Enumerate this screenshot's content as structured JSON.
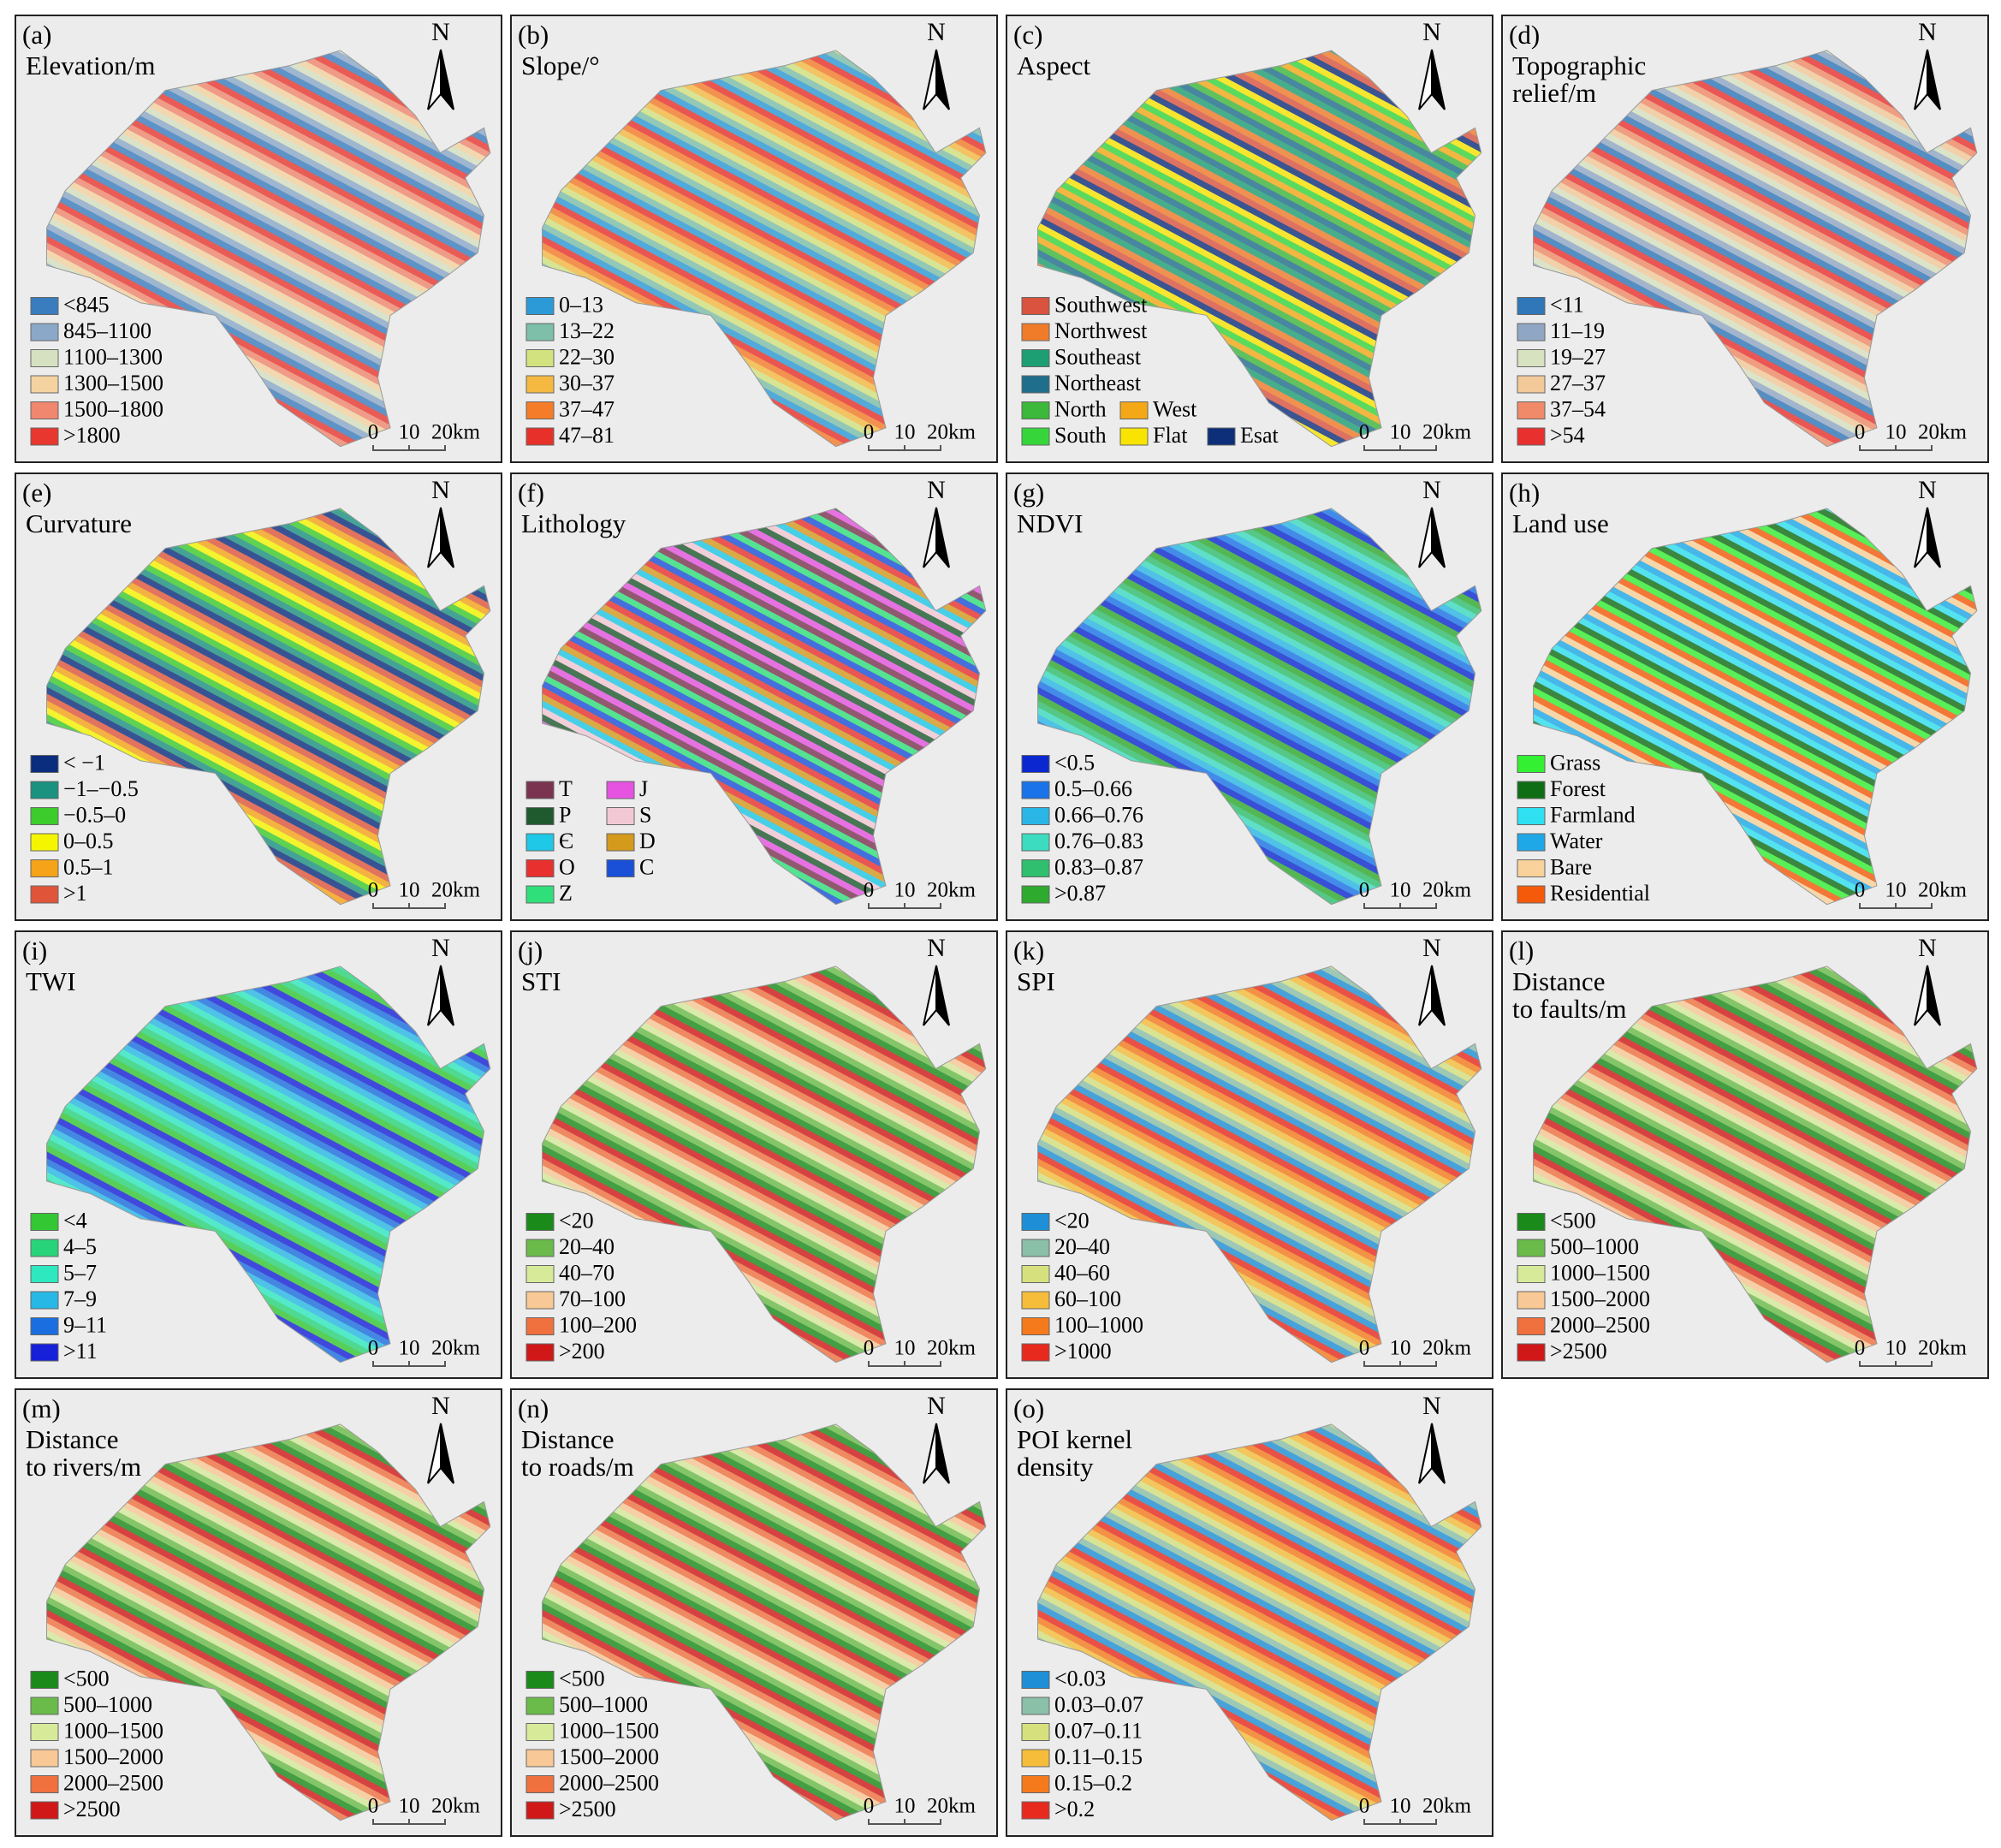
{
  "panels": [
    {
      "label": "(a)",
      "title": [
        "Elevation/m"
      ],
      "north": "N",
      "scale": [
        "0",
        "10",
        "20km"
      ],
      "legend": [
        {
          "label": "<845",
          "color": "#3a7dbf"
        },
        {
          "label": "845–1100",
          "color": "#8ba8c8"
        },
        {
          "label": "1100–1300",
          "color": "#d5e1c0"
        },
        {
          "label": "1300–1500",
          "color": "#f5d3a0"
        },
        {
          "label": "1500–1800",
          "color": "#f0876e"
        },
        {
          "label": ">1800",
          "color": "#e8372f"
        }
      ]
    },
    {
      "label": "(b)",
      "title": [
        "Slope/°"
      ],
      "north": "N",
      "scale": [
        "0",
        "10",
        "20km"
      ],
      "legend": [
        {
          "label": "0–13",
          "color": "#2c9ad6"
        },
        {
          "label": "13–22",
          "color": "#7dbfa8"
        },
        {
          "label": "22–30",
          "color": "#d2e27e"
        },
        {
          "label": "30–37",
          "color": "#f5b942"
        },
        {
          "label": "37–47",
          "color": "#f57c29"
        },
        {
          "label": "47–81",
          "color": "#e8302a"
        }
      ]
    },
    {
      "label": "(c)",
      "title": [
        "Aspect"
      ],
      "north": "N",
      "scale": [
        "0",
        "10",
        "20km"
      ],
      "legend": [
        {
          "label": "Southwest",
          "color": "#d9533f"
        },
        {
          "label": "Northwest",
          "color": "#f07c2a"
        },
        {
          "label": "Southeast",
          "color": "#1e9e73"
        },
        {
          "label": "Northeast",
          "color": "#1f6e8c"
        },
        {
          "label": "North",
          "color": "#3cb83a"
        },
        {
          "label": "West",
          "color": "#f4a818"
        },
        {
          "label": "South",
          "color": "#36d63a"
        },
        {
          "label": "Flat",
          "color": "#f8e400"
        },
        {
          "label": "Esat",
          "color": "#0d2f7a"
        }
      ]
    },
    {
      "label": "(d)",
      "title": [
        "Topographic",
        "relief/m"
      ],
      "north": "N",
      "scale": [
        "0",
        "10",
        "20km"
      ],
      "legend": [
        {
          "label": "<11",
          "color": "#2f77b8"
        },
        {
          "label": "11–19",
          "color": "#8fa7c5"
        },
        {
          "label": "19–27",
          "color": "#d7e2c0"
        },
        {
          "label": "27–37",
          "color": "#f3c99a"
        },
        {
          "label": "37–54",
          "color": "#f08a68"
        },
        {
          "label": ">54",
          "color": "#e8302e"
        }
      ]
    },
    {
      "label": "(e)",
      "title": [
        "Curvature"
      ],
      "north": "N",
      "scale": [
        "0",
        "10",
        "20km"
      ],
      "legend": [
        {
          "label": "< −1",
          "color": "#0b2d7e"
        },
        {
          "label": "−1–−0.5",
          "color": "#1b9180"
        },
        {
          "label": "−0.5–0",
          "color": "#3ccc2c"
        },
        {
          "label": "0–0.5",
          "color": "#f5f500"
        },
        {
          "label": "0.5–1",
          "color": "#f5a318"
        },
        {
          "label": ">1",
          "color": "#e0553a"
        }
      ]
    },
    {
      "label": "(f)",
      "title": [
        "Lithology"
      ],
      "north": "N",
      "scale": [
        "0",
        "10",
        "20km"
      ],
      "legend": [
        {
          "label": "T",
          "color": "#7a3450"
        },
        {
          "label": "J",
          "color": "#e553e0"
        },
        {
          "label": "P",
          "color": "#1e5a2e"
        },
        {
          "label": "S",
          "color": "#f2c8d4"
        },
        {
          "label": "Є",
          "color": "#1ec8e6"
        },
        {
          "label": "D",
          "color": "#d49a1c"
        },
        {
          "label": "O",
          "color": "#e8302e"
        },
        {
          "label": "C",
          "color": "#1a50d8"
        },
        {
          "label": "Z",
          "color": "#2fe07a"
        }
      ]
    },
    {
      "label": "(g)",
      "title": [
        "NDVI"
      ],
      "north": "N",
      "scale": [
        "0",
        "10",
        "20km"
      ],
      "legend": [
        {
          "label": "<0.5",
          "color": "#0b28d0"
        },
        {
          "label": "0.5–0.66",
          "color": "#1a73e8"
        },
        {
          "label": "0.66–0.76",
          "color": "#29b6e6"
        },
        {
          "label": "0.76–0.83",
          "color": "#3cdcc0"
        },
        {
          "label": "0.83–0.87",
          "color": "#2fbf6e"
        },
        {
          "label": ">0.87",
          "color": "#2eaa2e"
        }
      ]
    },
    {
      "label": "(h)",
      "title": [
        "Land use"
      ],
      "north": "N",
      "scale": [
        "0",
        "10",
        "20km"
      ],
      "legend": [
        {
          "label": "Grass",
          "color": "#33f033"
        },
        {
          "label": "Forest",
          "color": "#0f6e14"
        },
        {
          "label": "Farmland",
          "color": "#2ee0f0"
        },
        {
          "label": "Water",
          "color": "#1ea8e8"
        },
        {
          "label": "Bare",
          "color": "#f8d29a"
        },
        {
          "label": "Residential",
          "color": "#f55a0a"
        }
      ]
    },
    {
      "label": "(i)",
      "title": [
        "TWI"
      ],
      "north": "N",
      "scale": [
        "0",
        "10",
        "20km"
      ],
      "legend": [
        {
          "label": "<4",
          "color": "#33c833"
        },
        {
          "label": "4–5",
          "color": "#28d47a"
        },
        {
          "label": "5–7",
          "color": "#2ee8c0"
        },
        {
          "label": "7–9",
          "color": "#28b8e6"
        },
        {
          "label": "9–11",
          "color": "#1a6ee0"
        },
        {
          "label": ">11",
          "color": "#1620d8"
        }
      ]
    },
    {
      "label": "(j)",
      "title": [
        "STI"
      ],
      "north": "N",
      "scale": [
        "0",
        "10",
        "20km"
      ],
      "legend": [
        {
          "label": "<20",
          "color": "#1a8a1a"
        },
        {
          "label": "20–40",
          "color": "#6abb4a"
        },
        {
          "label": "40–70",
          "color": "#d6ea9a"
        },
        {
          "label": "70–100",
          "color": "#f8c896"
        },
        {
          "label": "100–200",
          "color": "#f0703e"
        },
        {
          "label": ">200",
          "color": "#d01818"
        }
      ]
    },
    {
      "label": "(k)",
      "title": [
        "SPI"
      ],
      "north": "N",
      "scale": [
        "0",
        "10",
        "20km"
      ],
      "legend": [
        {
          "label": "<20",
          "color": "#1e8fd6"
        },
        {
          "label": "20–40",
          "color": "#8abfa8"
        },
        {
          "label": "40–60",
          "color": "#d6e17e"
        },
        {
          "label": "60–100",
          "color": "#f5bd3a"
        },
        {
          "label": "100–1000",
          "color": "#f57a1c"
        },
        {
          "label": ">1000",
          "color": "#e82a1e"
        }
      ]
    },
    {
      "label": "(l)",
      "title": [
        "Distance",
        "to faults/m"
      ],
      "north": "N",
      "scale": [
        "0",
        "10",
        "20km"
      ],
      "legend": [
        {
          "label": "<500",
          "color": "#1a8a1a"
        },
        {
          "label": "500–1000",
          "color": "#6abb4a"
        },
        {
          "label": "1000–1500",
          "color": "#d6ea9a"
        },
        {
          "label": "1500–2000",
          "color": "#f8c896"
        },
        {
          "label": "2000–2500",
          "color": "#f0703e"
        },
        {
          "label": ">2500",
          "color": "#d01818"
        }
      ]
    },
    {
      "label": "(m)",
      "title": [
        "Distance",
        "to rivers/m"
      ],
      "north": "N",
      "scale": [
        "0",
        "10",
        "20km"
      ],
      "legend": [
        {
          "label": "<500",
          "color": "#1a8a1a"
        },
        {
          "label": "500–1000",
          "color": "#6abb4a"
        },
        {
          "label": "1000–1500",
          "color": "#d6ea9a"
        },
        {
          "label": "1500–2000",
          "color": "#f8c896"
        },
        {
          "label": "2000–2500",
          "color": "#f0703e"
        },
        {
          "label": ">2500",
          "color": "#d01818"
        }
      ]
    },
    {
      "label": "(n)",
      "title": [
        "Distance",
        "to roads/m"
      ],
      "north": "N",
      "scale": [
        "0",
        "10",
        "20km"
      ],
      "legend": [
        {
          "label": "<500",
          "color": "#1a8a1a"
        },
        {
          "label": "500–1000",
          "color": "#6abb4a"
        },
        {
          "label": "1000–1500",
          "color": "#d6ea9a"
        },
        {
          "label": "1500–2000",
          "color": "#f8c896"
        },
        {
          "label": "2000–2500",
          "color": "#f0703e"
        },
        {
          "label": ">2500",
          "color": "#d01818"
        }
      ]
    },
    {
      "label": "(o)",
      "title": [
        "POI kernel",
        "density"
      ],
      "north": "N",
      "scale": [
        "0",
        "10",
        "20km"
      ],
      "legend": [
        {
          "label": "<0.03",
          "color": "#1e8fd6"
        },
        {
          "label": "0.03–0.07",
          "color": "#8abfa8"
        },
        {
          "label": "0.07–0.11",
          "color": "#d6e17e"
        },
        {
          "label": "0.11–0.15",
          "color": "#f5bd3a"
        },
        {
          "label": "0.15–0.2",
          "color": "#f57a1c"
        },
        {
          "label": ">0.2",
          "color": "#e82a1e"
        }
      ]
    }
  ]
}
